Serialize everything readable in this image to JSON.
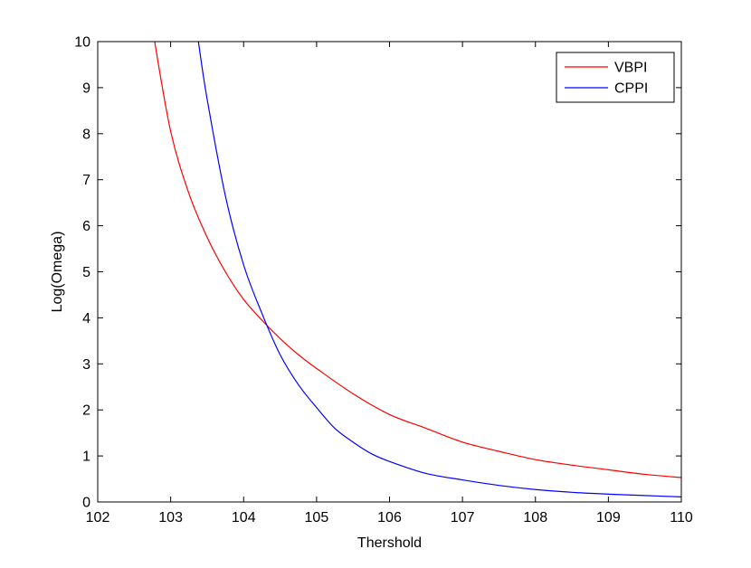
{
  "chart_data": {
    "type": "line",
    "title": "",
    "xlabel": "Thershold",
    "ylabel": "Log(Omega)",
    "xlim": [
      102,
      110
    ],
    "ylim": [
      0,
      10
    ],
    "xticks": [
      "102",
      "103",
      "104",
      "105",
      "106",
      "107",
      "108",
      "109",
      "110"
    ],
    "yticks": [
      "0",
      "1",
      "2",
      "3",
      "4",
      "5",
      "6",
      "7",
      "8",
      "9",
      "10"
    ],
    "grid": false,
    "legend_position": "top-right",
    "series": [
      {
        "name": "VBPI",
        "color": "#ff0000",
        "x": [
          102.78,
          103.0,
          103.25,
          103.5,
          103.75,
          104.0,
          104.25,
          104.5,
          104.75,
          105.0,
          105.5,
          106.0,
          106.5,
          107.0,
          107.5,
          108.0,
          108.5,
          109.0,
          109.5,
          110.0
        ],
        "y": [
          10.0,
          8.05,
          6.7,
          5.75,
          5.0,
          4.4,
          3.95,
          3.55,
          3.2,
          2.9,
          2.35,
          1.9,
          1.6,
          1.3,
          1.1,
          0.92,
          0.8,
          0.7,
          0.6,
          0.53
        ]
      },
      {
        "name": "CPPI",
        "color": "#0000ff",
        "x": [
          103.38,
          103.5,
          103.75,
          104.0,
          104.25,
          104.5,
          104.75,
          105.0,
          105.25,
          105.5,
          105.75,
          106.0,
          106.5,
          107.0,
          107.5,
          108.0,
          108.5,
          109.0,
          109.5,
          110.0
        ],
        "y": [
          10.0,
          8.75,
          6.65,
          5.15,
          4.1,
          3.2,
          2.55,
          2.05,
          1.6,
          1.3,
          1.05,
          0.88,
          0.62,
          0.48,
          0.36,
          0.27,
          0.21,
          0.17,
          0.14,
          0.11
        ]
      }
    ]
  }
}
